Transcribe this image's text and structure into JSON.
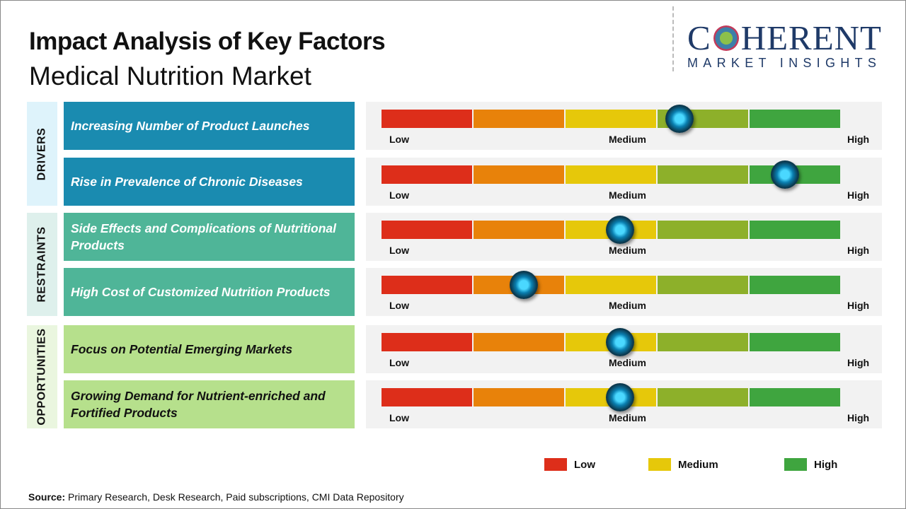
{
  "title": "Impact Analysis of Key Factors",
  "subtitle": "Medical Nutrition Market",
  "logo": {
    "main_left": "C",
    "main_right": "HERENT",
    "sub": "MARKET INSIGHTS"
  },
  "scale_labels": {
    "low": "Low",
    "medium": "Medium",
    "high": "High"
  },
  "segment_colors": [
    "#dd2e1a",
    "#e8820a",
    "#e6c80a",
    "#8db02a",
    "#3fa53f"
  ],
  "categories": [
    {
      "label": "DRIVERS",
      "bg": "#def3fb",
      "factor_bg": "#1a8bb0",
      "text_color": "#ffffff"
    },
    {
      "label": "RESTRAINTS",
      "bg": "#def0ec",
      "factor_bg": "#4fb598",
      "text_color": "#ffffff"
    },
    {
      "label": "OPPORTUNITIES",
      "bg": "#eaf6df",
      "factor_bg": "#b6e08c",
      "text_color": "#111111"
    }
  ],
  "chart_data": {
    "type": "gauge",
    "title": "Impact Analysis of Key Factors",
    "scale": [
      "Low",
      "Medium",
      "High"
    ],
    "range": [
      0,
      1
    ],
    "factors": [
      {
        "category": 0,
        "name": "Increasing Number of Product Launches",
        "impact": 0.65
      },
      {
        "category": 0,
        "name": "Rise in Prevalence of Chronic Diseases",
        "impact": 0.88
      },
      {
        "category": 1,
        "name": "Side Effects and Complications of Nutritional Products",
        "impact": 0.52
      },
      {
        "category": 1,
        "name": "High Cost of Customized Nutrition Products",
        "impact": 0.31
      },
      {
        "category": 2,
        "name": "Focus on Potential Emerging Markets",
        "impact": 0.52
      },
      {
        "category": 2,
        "name": "Growing Demand for Nutrient-enriched and Fortified Products",
        "impact": 0.52
      }
    ]
  },
  "legend": [
    {
      "label": "Low",
      "color": "#dd2e1a"
    },
    {
      "label": "Medium",
      "color": "#e6c80a"
    },
    {
      "label": "High",
      "color": "#3fa53f"
    }
  ],
  "source": {
    "label": "Source:",
    "text": " Primary Research, Desk Research, Paid subscriptions, CMI Data Repository"
  }
}
